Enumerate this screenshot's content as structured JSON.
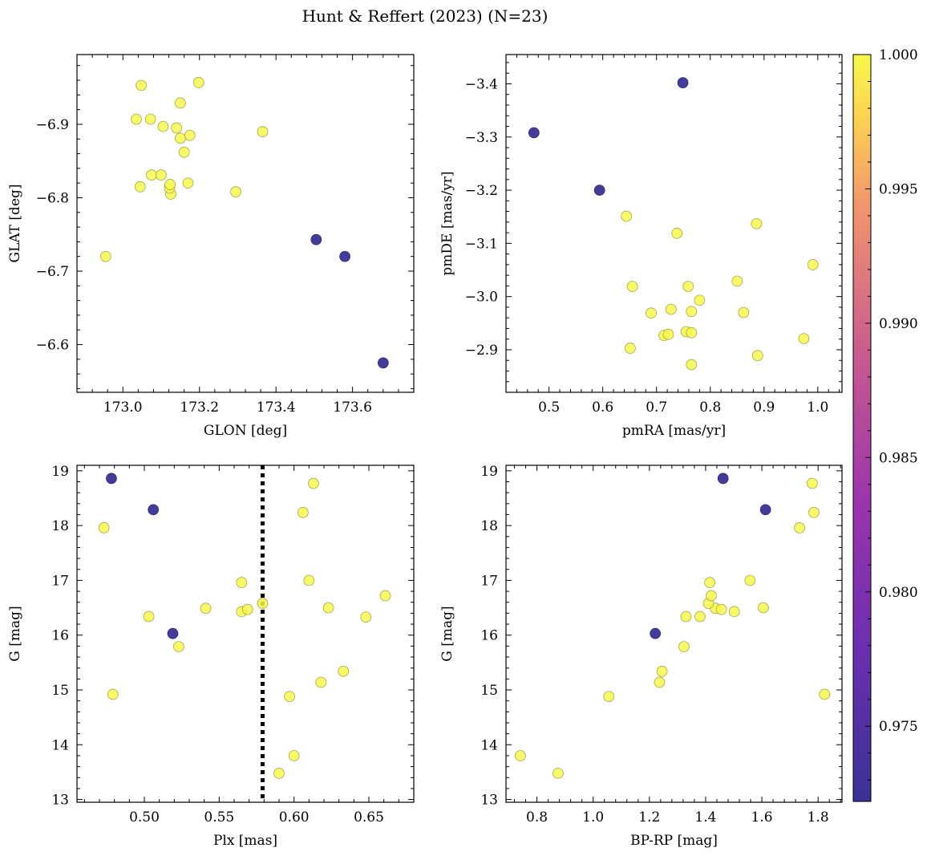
{
  "figure": {
    "title": "Hunt & Reffert (2023) (N=23)"
  },
  "colorbar": {
    "range": [
      0.9722,
      1.0
    ],
    "ticks": [
      "0.975",
      "0.980",
      "0.985",
      "0.990",
      "0.995",
      "1.000"
    ],
    "tick_values": [
      0.975,
      0.98,
      0.985,
      0.99,
      0.995,
      1.0
    ],
    "colormap": "plasma"
  },
  "chart_data": [
    {
      "type": "scatter",
      "xlabel": "GLON [deg]",
      "ylabel": "GLAT [deg]",
      "xlim": [
        172.88,
        173.76
      ],
      "ylim": [
        -6.995,
        -6.535
      ],
      "xticks": [
        173.0,
        173.2,
        173.4,
        173.6
      ],
      "xtick_labels": [
        "173.0",
        "173.2",
        "173.4",
        "173.6"
      ],
      "yticks": [
        -6.6,
        -6.7,
        -6.8,
        -6.9
      ],
      "ytick_labels": [
        "−6.6",
        "−6.7",
        "−6.8",
        "−6.9"
      ],
      "x": [
        173.68,
        173.58,
        173.505,
        172.955,
        173.045,
        173.075,
        173.1,
        173.125,
        173.122,
        173.123,
        173.17,
        173.295,
        173.16,
        173.15,
        173.175,
        173.365,
        173.105,
        173.14,
        173.035,
        173.072,
        173.15,
        173.048,
        173.198
      ],
      "y": [
        -6.575,
        -6.72,
        -6.743,
        -6.72,
        -6.815,
        -6.831,
        -6.831,
        -6.805,
        -6.813,
        -6.818,
        -6.82,
        -6.808,
        -6.862,
        -6.881,
        -6.885,
        -6.89,
        -6.897,
        -6.895,
        -6.907,
        -6.907,
        -6.929,
        -6.953,
        -6.957
      ],
      "prob": [
        0.9722,
        0.9722,
        0.9722,
        1,
        1,
        1,
        1,
        1,
        1,
        1,
        1,
        1,
        1,
        1,
        1,
        1,
        1,
        1,
        1,
        1,
        1,
        1,
        1
      ]
    },
    {
      "type": "scatter",
      "xlabel": "pmRA [mas/yr]",
      "ylabel": "pmDE [mas/yr]",
      "xlim": [
        0.42,
        1.045
      ],
      "ylim": [
        -3.455,
        -2.82
      ],
      "xticks": [
        0.5,
        0.6,
        0.7,
        0.8,
        0.9,
        1.0
      ],
      "xtick_labels": [
        "0.5",
        "0.6",
        "0.7",
        "0.8",
        "0.9",
        "1.0"
      ],
      "yticks": [
        -2.9,
        -3.0,
        -3.1,
        -3.2,
        -3.3,
        -3.4
      ],
      "ytick_labels": [
        "−2.9",
        "−3.0",
        "−3.1",
        "−3.2",
        "−3.3",
        "−3.4"
      ],
      "x": [
        0.472,
        0.594,
        0.749,
        0.765,
        0.651,
        0.714,
        0.722,
        0.755,
        0.765,
        0.888,
        0.974,
        0.69,
        0.727,
        0.765,
        0.78,
        0.862,
        0.655,
        0.759,
        0.85,
        0.991,
        0.738,
        0.886,
        0.644
      ],
      "y": [
        -3.308,
        -3.2,
        -3.402,
        -2.872,
        -2.903,
        -2.927,
        -2.929,
        -2.934,
        -2.932,
        -2.889,
        -2.921,
        -2.969,
        -2.976,
        -2.972,
        -2.993,
        -2.97,
        -3.019,
        -3.019,
        -3.029,
        -3.06,
        -3.119,
        -3.137,
        -3.151
      ],
      "prob": [
        0.9722,
        0.9722,
        0.9722,
        1,
        1,
        1,
        1,
        1,
        1,
        1,
        1,
        1,
        1,
        1,
        1,
        1,
        1,
        1,
        1,
        1,
        1,
        1,
        1
      ]
    },
    {
      "type": "scatter",
      "xlabel": "Plx [mas]",
      "ylabel": "G [mag]",
      "xlim": [
        0.455,
        0.68
      ],
      "ylim": [
        19.1,
        12.95
      ],
      "xticks": [
        0.5,
        0.55,
        0.6,
        0.65
      ],
      "xtick_labels": [
        "0.50",
        "0.55",
        "0.60",
        "0.65"
      ],
      "yticks": [
        13,
        14,
        15,
        16,
        17,
        18,
        19
      ],
      "ytick_labels": [
        "13",
        "14",
        "15",
        "16",
        "17",
        "18",
        "19"
      ],
      "vline": 0.579,
      "x": [
        0.519,
        0.506,
        0.478,
        0.59,
        0.6,
        0.479,
        0.597,
        0.618,
        0.633,
        0.523,
        0.503,
        0.541,
        0.565,
        0.569,
        0.579,
        0.623,
        0.648,
        0.661,
        0.565,
        0.61,
        0.473,
        0.606,
        0.613
      ],
      "y": [
        16.03,
        18.29,
        18.86,
        13.48,
        13.8,
        14.92,
        14.88,
        15.14,
        15.34,
        15.79,
        16.34,
        16.49,
        16.43,
        16.47,
        16.58,
        16.5,
        16.33,
        16.72,
        16.96,
        17.0,
        17.96,
        18.24,
        18.77
      ],
      "prob": [
        0.9722,
        0.9722,
        0.9722,
        1,
        1,
        1,
        1,
        1,
        1,
        1,
        1,
        1,
        1,
        1,
        1,
        1,
        1,
        1,
        1,
        1,
        1,
        1,
        1
      ]
    },
    {
      "type": "scatter",
      "xlabel": "BP-RP [mag]",
      "ylabel": "G [mag]",
      "xlim": [
        0.69,
        1.885
      ],
      "ylim": [
        19.1,
        12.95
      ],
      "xticks": [
        0.8,
        1.0,
        1.2,
        1.4,
        1.6,
        1.8
      ],
      "xtick_labels": [
        "0.8",
        "1.0",
        "1.2",
        "1.4",
        "1.6",
        "1.8"
      ],
      "yticks": [
        13,
        14,
        15,
        16,
        17,
        18,
        19
      ],
      "ytick_labels": [
        "13",
        "14",
        "15",
        "16",
        "17",
        "18",
        "19"
      ],
      "x": [
        1.221,
        1.613,
        1.462,
        0.741,
        0.875,
        1.056,
        1.236,
        1.245,
        1.323,
        1.823,
        1.33,
        1.38,
        1.435,
        1.456,
        1.41,
        1.502,
        1.605,
        1.42,
        1.415,
        1.558,
        1.734,
        1.785,
        1.779
      ],
      "y": [
        16.03,
        18.29,
        18.86,
        13.8,
        13.48,
        14.88,
        15.14,
        15.34,
        15.79,
        14.92,
        16.34,
        16.34,
        16.49,
        16.47,
        16.58,
        16.43,
        16.5,
        16.72,
        16.96,
        17.0,
        17.96,
        18.24,
        18.77
      ],
      "prob": [
        0.9722,
        0.9722,
        0.9722,
        1,
        1,
        1,
        1,
        1,
        1,
        1,
        1,
        1,
        1,
        1,
        1,
        1,
        1,
        1,
        1,
        1,
        1,
        1,
        1
      ]
    }
  ]
}
